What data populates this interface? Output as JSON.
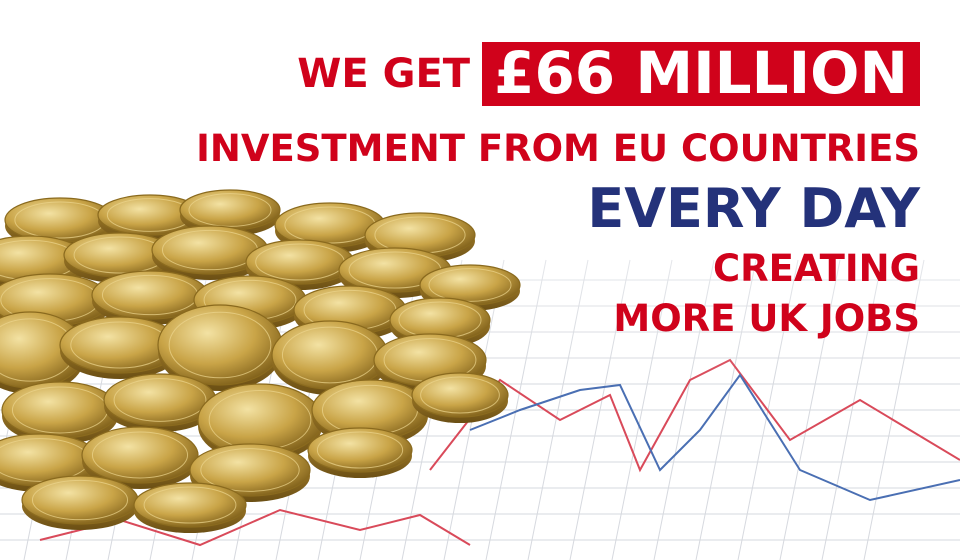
{
  "colors": {
    "red": "#d0021b",
    "blue": "#24327a",
    "gold": "#c9a447",
    "gold_dark": "#8a6a1e",
    "gold_light": "#ecd58e",
    "grid": "#d6d9df",
    "chart_red": "#d94a5a",
    "chart_blue": "#4a6fb3"
  },
  "headline": {
    "prefix": "WE GET",
    "highlight": "£66 MILLION",
    "line2": "INVESTMENT FROM EU COUNTRIES",
    "line3": "EVERY DAY",
    "line4": "CREATING",
    "line5": "MORE UK JOBS"
  },
  "image": {
    "coins_icon": "pound-coins-pile-icon",
    "chart_icon": "line-chart-background-icon"
  }
}
